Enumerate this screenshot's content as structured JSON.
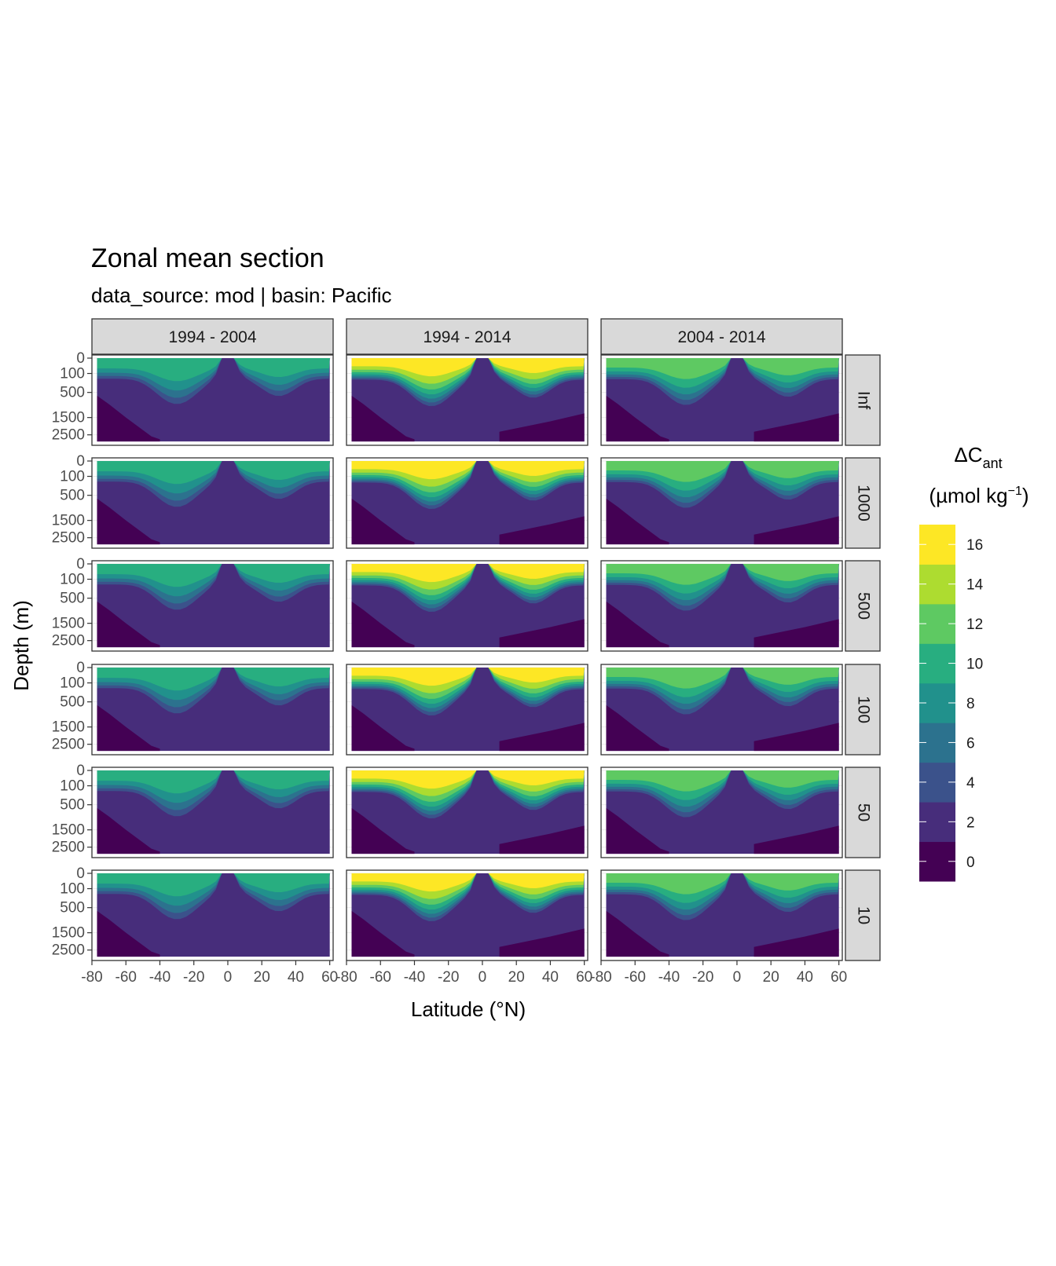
{
  "chart_data": {
    "type": "heatmap",
    "title": "Zonal mean section",
    "subtitle": "data_source:  mod | basin: Pacific",
    "xlabel": "Latitude (°N)",
    "ylabel": "Depth (m)",
    "col_facets": [
      "1994 - 2004",
      "1994 - 2014",
      "2004 - 2014"
    ],
    "row_facets": [
      "Inf",
      "1000",
      "500",
      "100",
      "50",
      "10"
    ],
    "x_ticks": [
      "-80",
      "-60",
      "-40",
      "-20",
      "0",
      "20",
      "40",
      "60"
    ],
    "y_ticks": [
      "0",
      "100",
      "500",
      "1500",
      "2500"
    ],
    "legend": {
      "title_main": "ΔC",
      "title_sub": "ant",
      "unit_left": "(µmol kg",
      "unit_sup": "−1",
      "unit_right": ")",
      "labels": [
        "0",
        "2",
        "4",
        "6",
        "8",
        "10",
        "12",
        "14",
        "16"
      ]
    },
    "color_bins": [
      "#440154",
      "#472d7b",
      "#3b528b",
      "#2c728e",
      "#21918c",
      "#28ae80",
      "#5ec962",
      "#addc30",
      "#fde725"
    ],
    "xlim": [
      -80,
      62
    ],
    "ylim": [
      3000,
      0
    ],
    "surface_max_by_column": [
      10.5,
      17,
      12
    ]
  }
}
